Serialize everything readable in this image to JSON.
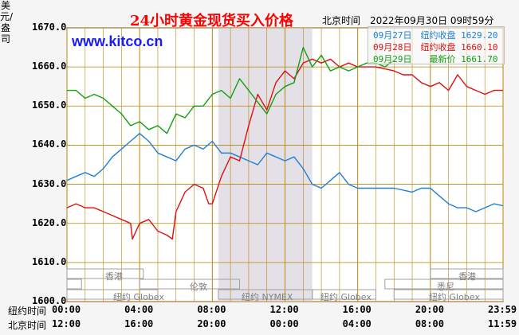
{
  "header": {
    "title": "24小时黄金现货买入价格",
    "timestamp": "北京时间　2022年09月30日 09时59分",
    "site": "www.kitco.cn"
  },
  "axis_row_labels": {
    "kitco_time": "纽约时间",
    "beijing_time": "北京时间"
  },
  "sessions": {
    "hongkong": "香港",
    "london": "伦敦",
    "nymex": "纽约 NYMEX",
    "globex": "纽约 Globex",
    "sydney": "悉尼"
  },
  "colors": {
    "sep27": "#1e7fd8",
    "sep28": "#e01010",
    "sep29": "#10a010",
    "grid": "#b8860b",
    "shade": "#e4e0e8"
  },
  "chart_data": {
    "type": "line",
    "title": "24小时黄金现货买入价格",
    "ylabel": "美元/盎司",
    "ylim": [
      1600,
      1670
    ],
    "y_ticks": [
      "1600.0",
      "1610.0",
      "1620.0",
      "1630.0",
      "1640.0",
      "1650.0",
      "1660.0",
      "1670.0"
    ],
    "xlim": [
      0,
      24
    ],
    "x_ticks_ny": [
      "00:00",
      "04:00",
      "08:00",
      "12:00",
      "16:00",
      "20:00",
      "23:59"
    ],
    "x_ticks_bj": [
      "12:00",
      "16:00",
      "20:00",
      "00:00",
      "04:00",
      "08:00",
      "11:59"
    ],
    "legend": [
      "09月27日　纽约收盘 1629.20",
      "09月28日　纽约收盘 1660.10",
      "09月29日　　最新价 1661.70"
    ],
    "series": [
      {
        "name": "09月27日　纽约收盘 1629.20",
        "color": "#1e7fd8",
        "x": [
          0,
          0.5,
          1,
          1.5,
          2,
          2.5,
          3,
          3.5,
          4,
          4.5,
          5,
          5.5,
          6,
          6.5,
          7,
          7.5,
          8,
          8.5,
          9,
          9.5,
          10,
          10.5,
          11,
          11.5,
          12,
          12.5,
          13,
          13.5,
          14,
          14.5,
          15,
          15.5,
          16,
          17,
          18,
          19,
          19.5,
          20,
          20.5,
          21,
          21.5,
          22,
          22.5,
          23,
          23.5,
          23.98
        ],
        "y": [
          1631,
          1632,
          1633,
          1632,
          1634,
          1637,
          1639,
          1641,
          1643,
          1641,
          1638,
          1637,
          1636,
          1639,
          1640,
          1639,
          1641,
          1638,
          1638,
          1637,
          1636,
          1635,
          1638,
          1637,
          1636,
          1637,
          1634,
          1630,
          1629,
          1631,
          1633,
          1630,
          1629,
          1629,
          1629,
          1628,
          1629,
          1629,
          1627,
          1625,
          1624,
          1624,
          1623,
          1624,
          1625,
          1624.5
        ]
      },
      {
        "name": "09月28日　纽约收盘 1660.10",
        "color": "#e01010",
        "x": [
          0,
          0.5,
          1,
          1.5,
          2,
          2.5,
          3,
          3.5,
          3.6,
          3.8,
          4,
          4.5,
          5,
          5.5,
          5.8,
          6,
          6.5,
          7,
          7.5,
          7.8,
          8,
          8.5,
          9,
          9.5,
          10,
          10.5,
          11,
          11.5,
          12,
          12.5,
          13,
          13.5,
          14,
          14.5,
          15,
          15.5,
          16,
          17,
          18,
          18.5,
          19,
          19.5,
          20,
          20.5,
          21,
          21.5,
          22,
          22.5,
          23,
          23.5,
          23.98
        ],
        "y": [
          1624,
          1625,
          1624,
          1624,
          1623,
          1622,
          1621,
          1620,
          1616,
          1618,
          1620,
          1621,
          1618,
          1617,
          1616,
          1623,
          1628,
          1630,
          1629,
          1625,
          1625,
          1632,
          1637,
          1636,
          1645,
          1653,
          1649,
          1656,
          1659,
          1657,
          1661,
          1662,
          1661,
          1662,
          1660,
          1661,
          1660,
          1660,
          1659,
          1658,
          1658,
          1656,
          1655,
          1656,
          1654,
          1658,
          1655,
          1654,
          1653,
          1654,
          1654
        ]
      },
      {
        "name": "09月29日　　最新价 1661.70",
        "color": "#10a010",
        "x": [
          0,
          0.5,
          1,
          1.5,
          2,
          2.5,
          3,
          3.5,
          4,
          4.5,
          5,
          5.5,
          6,
          6.5,
          7,
          7.5,
          8,
          8.5,
          9,
          9.5,
          10,
          10.5,
          11,
          11.5,
          12,
          12.5,
          13,
          13.5,
          14,
          14.5,
          15,
          15.5,
          16,
          16.5,
          17,
          17.5,
          18
        ],
        "y": [
          1654,
          1654,
          1652,
          1653,
          1652,
          1650,
          1648,
          1645,
          1646,
          1644,
          1645,
          1643,
          1648,
          1647,
          1650,
          1650,
          1653,
          1654,
          1652,
          1657,
          1654,
          1651,
          1648,
          1653,
          1655,
          1656,
          1665,
          1660,
          1663,
          1659,
          1660,
          1659,
          1660,
          1661,
          1661,
          1660,
          1661.7
        ]
      }
    ]
  }
}
